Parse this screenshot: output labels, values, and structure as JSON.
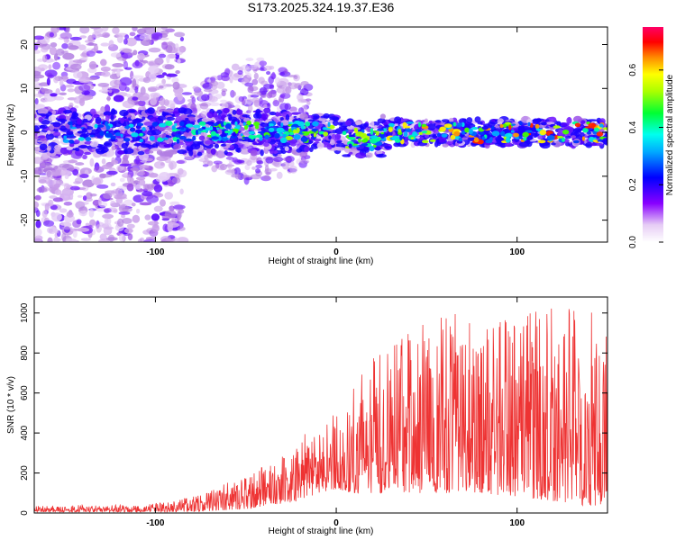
{
  "chart_data": [
    {
      "type": "heatmap",
      "title": "S173.2025.324.19.37.E36",
      "xlabel": "Height of straight line (km)",
      "ylabel": "Frequency (Hz)",
      "xlim": [
        -167,
        150
      ],
      "ylim": [
        -25,
        24
      ],
      "xticks": [
        "-100",
        "0",
        "100"
      ],
      "yticks": [
        "-20",
        "-10",
        "0",
        "10",
        "20"
      ],
      "colorbar": {
        "label": "Normalized spectral amplitude",
        "range": [
          0.0,
          0.75
        ],
        "ticks": [
          "0.0",
          "0.2",
          "0.4",
          "0.6"
        ],
        "colors": [
          "#ffffff",
          "#cc99ee",
          "#8800ff",
          "#0000ff",
          "#00ffff",
          "#00ff00",
          "#ffff00",
          "#ff8800",
          "#ff0000",
          "#ff0066"
        ]
      },
      "description_bands": {
        "center_freq_hz": 0,
        "band_halfwidth_hz": [
          3,
          5
        ],
        "noise_region_km": [
          -167,
          -85
        ]
      }
    },
    {
      "type": "line",
      "xlabel": "Height of straight line (km)",
      "ylabel": "SNR (10 * v/v)",
      "xlim": [
        -167,
        150
      ],
      "ylim": [
        0,
        1080
      ],
      "xticks": [
        "-100",
        "0",
        "100"
      ],
      "yticks": [
        "0",
        "200",
        "400",
        "600",
        "800",
        "1000"
      ],
      "series": [
        {
          "name": "SNR",
          "color": "#ee3333",
          "envelope_x": [
            -167,
            -140,
            -110,
            -90,
            -70,
            -50,
            -35,
            -20,
            -10,
            0,
            10,
            20,
            40,
            60,
            80,
            100,
            120,
            140,
            150
          ],
          "envelope_low": [
            5,
            5,
            5,
            5,
            10,
            20,
            40,
            60,
            100,
            120,
            100,
            100,
            100,
            100,
            100,
            80,
            60,
            30,
            50
          ],
          "envelope_high": [
            35,
            40,
            40,
            60,
            110,
            200,
            280,
            380,
            440,
            500,
            650,
            780,
            900,
            1030,
            960,
            980,
            1080,
            1020,
            900
          ]
        }
      ]
    }
  ]
}
